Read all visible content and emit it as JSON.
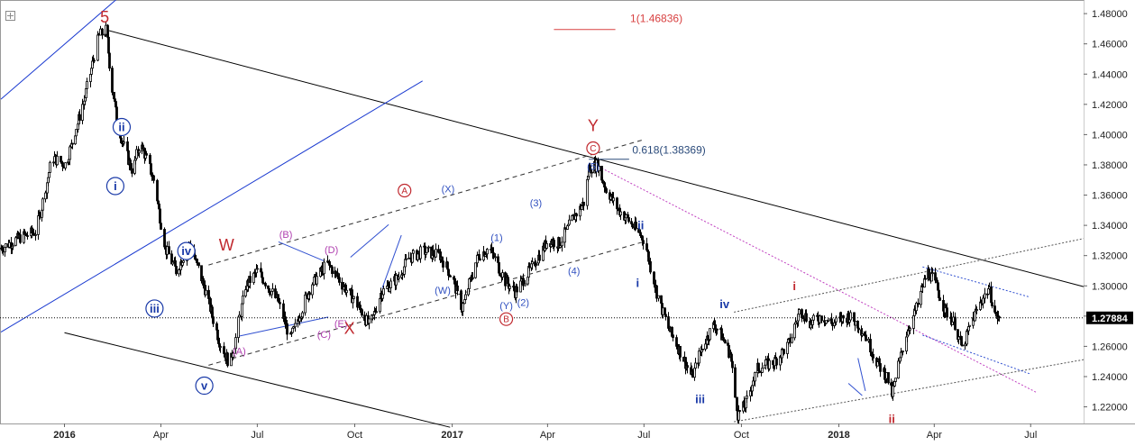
{
  "chart_data": {
    "type": "candlestick",
    "instrument_note": "",
    "y_axis": {
      "ticks": [
        "1.48000",
        "1.46000",
        "1.44000",
        "1.42000",
        "1.40000",
        "1.38000",
        "1.36000",
        "1.34000",
        "1.32000",
        "1.30000",
        "1.28000",
        "1.26000",
        "1.24000",
        "1.22000"
      ],
      "ylim": [
        1.209,
        1.489
      ],
      "side": "right"
    },
    "x_axis": {
      "ticks": [
        {
          "label": "2016",
          "bold": true,
          "date": "2016-01-01"
        },
        {
          "label": "Apr",
          "bold": false,
          "date": "2016-04-01"
        },
        {
          "label": "Jul",
          "bold": false,
          "date": "2016-07-01"
        },
        {
          "label": "Oct",
          "bold": false,
          "date": "2016-10-01"
        },
        {
          "label": "2017",
          "bold": true,
          "date": "2017-01-01"
        },
        {
          "label": "Apr",
          "bold": false,
          "date": "2017-04-01"
        },
        {
          "label": "Jul",
          "bold": false,
          "date": "2017-07-01"
        },
        {
          "label": "Oct",
          "bold": false,
          "date": "2017-10-01"
        },
        {
          "label": "2018",
          "bold": true,
          "date": "2018-01-01"
        },
        {
          "label": "Apr",
          "bold": false,
          "date": "2018-04-01"
        },
        {
          "label": "Jul",
          "bold": false,
          "date": "2018-07-01"
        }
      ],
      "xlim": [
        "2015-11-02",
        "2018-08-20"
      ]
    },
    "last_price": {
      "label": "1.27884",
      "value": 1.27884
    },
    "price_path": [
      [
        "2015-11-02",
        1.325
      ],
      [
        "2015-11-20",
        1.332
      ],
      [
        "2015-12-05",
        1.336
      ],
      [
        "2015-12-20",
        1.385
      ],
      [
        "2016-01-02",
        1.38
      ],
      [
        "2016-01-20",
        1.425
      ],
      [
        "2016-02-02",
        1.465
      ],
      [
        "2016-02-09",
        1.469
      ],
      [
        "2016-02-13",
        1.44
      ],
      [
        "2016-02-20",
        1.405
      ],
      [
        "2016-03-05",
        1.375
      ],
      [
        "2016-03-12",
        1.395
      ],
      [
        "2016-03-25",
        1.37
      ],
      [
        "2016-04-05",
        1.325
      ],
      [
        "2016-04-15",
        1.31
      ],
      [
        "2016-04-28",
        1.328
      ],
      [
        "2016-05-10",
        1.303
      ],
      [
        "2016-05-25",
        1.265
      ],
      [
        "2016-06-05",
        1.248
      ],
      [
        "2016-06-20",
        1.3
      ],
      [
        "2016-07-01",
        1.31
      ],
      [
        "2016-07-20",
        1.29
      ],
      [
        "2016-08-01",
        1.265
      ],
      [
        "2016-08-20",
        1.3
      ],
      [
        "2016-09-05",
        1.315
      ],
      [
        "2016-09-20",
        1.3
      ],
      [
        "2016-10-01",
        1.29
      ],
      [
        "2016-10-15",
        1.273
      ],
      [
        "2016-10-25",
        1.295
      ],
      [
        "2016-11-10",
        1.305
      ],
      [
        "2016-11-20",
        1.318
      ],
      [
        "2016-12-05",
        1.323
      ],
      [
        "2016-12-20",
        1.32
      ],
      [
        "2017-01-01",
        1.305
      ],
      [
        "2017-01-10",
        1.285
      ],
      [
        "2017-01-25",
        1.32
      ],
      [
        "2017-02-05",
        1.325
      ],
      [
        "2017-02-20",
        1.303
      ],
      [
        "2017-03-01",
        1.296
      ],
      [
        "2017-03-15",
        1.31
      ],
      [
        "2017-04-01",
        1.33
      ],
      [
        "2017-04-12",
        1.328
      ],
      [
        "2017-04-25",
        1.345
      ],
      [
        "2017-05-05",
        1.355
      ],
      [
        "2017-05-10",
        1.378
      ],
      [
        "2017-05-18",
        1.38
      ],
      [
        "2017-05-25",
        1.365
      ],
      [
        "2017-06-05",
        1.352
      ],
      [
        "2017-06-20",
        1.34
      ],
      [
        "2017-07-01",
        1.33
      ],
      [
        "2017-07-05",
        1.318
      ],
      [
        "2017-07-15",
        1.29
      ],
      [
        "2017-07-25",
        1.27
      ],
      [
        "2017-08-05",
        1.255
      ],
      [
        "2017-08-15",
        1.24
      ],
      [
        "2017-08-25",
        1.26
      ],
      [
        "2017-09-05",
        1.275
      ],
      [
        "2017-09-12",
        1.267
      ],
      [
        "2017-09-20",
        1.255
      ],
      [
        "2017-09-27",
        1.215
      ],
      [
        "2017-10-05",
        1.222
      ],
      [
        "2017-10-15",
        1.245
      ],
      [
        "2017-11-01",
        1.25
      ],
      [
        "2017-11-15",
        1.262
      ],
      [
        "2017-11-25",
        1.285
      ],
      [
        "2017-12-05",
        1.275
      ],
      [
        "2017-12-15",
        1.28
      ],
      [
        "2017-12-25",
        1.275
      ],
      [
        "2018-01-10",
        1.28
      ],
      [
        "2018-01-18",
        1.275
      ],
      [
        "2018-01-25",
        1.268
      ],
      [
        "2018-02-05",
        1.25
      ],
      [
        "2018-02-15",
        1.24
      ],
      [
        "2018-02-20",
        1.228
      ],
      [
        "2018-02-25",
        1.245
      ],
      [
        "2018-03-05",
        1.268
      ],
      [
        "2018-03-15",
        1.285
      ],
      [
        "2018-03-25",
        1.31
      ],
      [
        "2018-04-01",
        1.303
      ],
      [
        "2018-04-10",
        1.285
      ],
      [
        "2018-04-20",
        1.275
      ],
      [
        "2018-04-27",
        1.258
      ],
      [
        "2018-05-05",
        1.275
      ],
      [
        "2018-05-15",
        1.29
      ],
      [
        "2018-05-22",
        1.298
      ],
      [
        "2018-05-29",
        1.28
      ],
      [
        "2018-06-01",
        1.279
      ]
    ],
    "annotations": [
      {
        "text": "5",
        "color": "#c0282e",
        "date": "2016-02-08",
        "price": 1.478,
        "size": 18,
        "style": "plain"
      },
      {
        "text": "ii",
        "color": "#1a3aa8",
        "date": "2016-02-24",
        "price": 1.405,
        "size": 13,
        "style": "circle"
      },
      {
        "text": "i",
        "color": "#1a3aa8",
        "date": "2016-02-18",
        "price": 1.366,
        "size": 13,
        "style": "circle"
      },
      {
        "text": "iv",
        "color": "#1a3aa8",
        "date": "2016-04-25",
        "price": 1.323,
        "size": 13,
        "style": "circle"
      },
      {
        "text": "iii",
        "color": "#1a3aa8",
        "date": "2016-03-26",
        "price": 1.285,
        "size": 13,
        "style": "circle"
      },
      {
        "text": "v",
        "color": "#1a3aa8",
        "date": "2016-05-12",
        "price": 1.234,
        "size": 13,
        "style": "circle"
      },
      {
        "text": "W",
        "color": "#c0282e",
        "date": "2016-06-02",
        "price": 1.327,
        "size": 18,
        "style": "plain"
      },
      {
        "text": "(A)",
        "color": "#b040b0",
        "date": "2016-06-14",
        "price": 1.257,
        "size": 11,
        "style": "plain"
      },
      {
        "text": "(B)",
        "color": "#b040b0",
        "date": "2016-07-28",
        "price": 1.334,
        "size": 11,
        "style": "plain"
      },
      {
        "text": "(C)",
        "color": "#b040b0",
        "date": "2016-09-02",
        "price": 1.268,
        "size": 11,
        "style": "plain"
      },
      {
        "text": "(D)",
        "color": "#b040b0",
        "date": "2016-09-09",
        "price": 1.324,
        "size": 11,
        "style": "plain"
      },
      {
        "text": "(E)",
        "color": "#b040b0",
        "date": "2016-09-18",
        "price": 1.275,
        "size": 11,
        "style": "plain"
      },
      {
        "text": "X",
        "color": "#c0282e",
        "date": "2016-09-26",
        "price": 1.272,
        "size": 18,
        "style": "plain"
      },
      {
        "text": "A",
        "color": "#c0282e",
        "date": "2016-11-17",
        "price": 1.363,
        "size": 11,
        "style": "circle"
      },
      {
        "text": "(X)",
        "color": "#3050c0",
        "date": "2016-12-28",
        "price": 1.364,
        "size": 11,
        "style": "plain"
      },
      {
        "text": "(W)",
        "color": "#3050c0",
        "date": "2016-12-23",
        "price": 1.297,
        "size": 11,
        "style": "plain"
      },
      {
        "text": "(1)",
        "color": "#3050c0",
        "date": "2017-02-12",
        "price": 1.332,
        "size": 11,
        "style": "plain"
      },
      {
        "text": "(3)",
        "color": "#3050c0",
        "date": "2017-03-21",
        "price": 1.355,
        "size": 11,
        "style": "plain"
      },
      {
        "text": "(Y)",
        "color": "#3050c0",
        "date": "2017-02-21",
        "price": 1.287,
        "size": 11,
        "style": "plain"
      },
      {
        "text": "B",
        "color": "#c0282e",
        "date": "2017-02-21",
        "price": 1.278,
        "size": 11,
        "style": "circle"
      },
      {
        "text": "(2)",
        "color": "#3050c0",
        "date": "2017-03-09",
        "price": 1.289,
        "size": 11,
        "style": "plain"
      },
      {
        "text": "(4)",
        "color": "#3050c0",
        "date": "2017-04-26",
        "price": 1.31,
        "size": 11,
        "style": "plain"
      },
      {
        "text": "Y",
        "color": "#c0282e",
        "date": "2017-05-14",
        "price": 1.406,
        "size": 18,
        "style": "plain"
      },
      {
        "text": "C",
        "color": "#c0282e",
        "date": "2017-05-14",
        "price": 1.391,
        "size": 11,
        "style": "circle"
      },
      {
        "text": "(5)",
        "color": "#3050c0",
        "date": "2017-05-14",
        "price": 1.379,
        "size": 11,
        "style": "plain"
      },
      {
        "text": "ii",
        "color": "#1a3aa8",
        "date": "2017-06-28",
        "price": 1.34,
        "size": 13,
        "style": "bold"
      },
      {
        "text": "i",
        "color": "#1a3aa8",
        "date": "2017-06-25",
        "price": 1.302,
        "size": 13,
        "style": "bold"
      },
      {
        "text": "iii",
        "color": "#1a3aa8",
        "date": "2017-08-23",
        "price": 1.225,
        "size": 13,
        "style": "bold"
      },
      {
        "text": "iv",
        "color": "#1a3aa8",
        "date": "2017-09-15",
        "price": 1.288,
        "size": 13,
        "style": "bold"
      },
      {
        "text": "i",
        "color": "#c0282e",
        "date": "2017-11-20",
        "price": 1.3,
        "size": 13,
        "style": "bold"
      },
      {
        "text": "ii",
        "color": "#c0282e",
        "date": "2018-02-20",
        "price": 1.212,
        "size": 13,
        "style": "bold"
      }
    ],
    "fib_labels": [
      {
        "text": "1(1.46836)",
        "color": "#d84040",
        "date": "2017-06-18",
        "price": 1.4745
      },
      {
        "text": "0.618(1.38369)",
        "color": "#2a4a7a",
        "date": "2017-06-20",
        "price": 1.3873
      }
    ],
    "fib_lines": [
      {
        "color": "#d84040",
        "d1": "2017-04-07",
        "d2": "2017-06-04",
        "price": 1.4695
      },
      {
        "color": "#2a4a7a",
        "d1": "2017-05-10",
        "d2": "2017-06-17",
        "price": 1.3837
      }
    ],
    "lines": [
      {
        "color": "#000000",
        "dash": "",
        "d1": "2016-02-08",
        "p1": 1.4695,
        "d2": "2018-08-20",
        "p2": 1.2995
      },
      {
        "color": "#000000",
        "dash": "",
        "d1": "2016-01-01",
        "p1": 1.269,
        "d2": "2016-12-30",
        "p2": 1.2065
      },
      {
        "color": "#1a3ad0",
        "dash": "",
        "d1": "2015-11-02",
        "p1": 1.4234,
        "d2": "2016-03-10",
        "p2": 1.5015
      },
      {
        "color": "#1a3ad0",
        "dash": "",
        "d1": "2015-11-02",
        "p1": 1.2694,
        "d2": "2016-12-04",
        "p2": 1.4355
      },
      {
        "color": "#333333",
        "dash": "5,4",
        "d1": "2016-05-16",
        "p1": 1.3138,
        "d2": "2017-06-30",
        "p2": 1.3965
      },
      {
        "color": "#333333",
        "dash": "5,4",
        "d1": "2016-05-16",
        "p1": 1.2475,
        "d2": "2017-07-01",
        "p2": 1.3292
      },
      {
        "color": "#c040c0",
        "dash": "2,2",
        "d1": "2017-05-16",
        "p1": 1.38,
        "d2": "2018-07-06",
        "p2": 1.2297
      },
      {
        "color": "#555555",
        "dash": "2,2",
        "d1": "2017-09-24",
        "p1": 1.2826,
        "d2": "2018-08-20",
        "p2": 1.3313
      },
      {
        "color": "#555555",
        "dash": "2,2",
        "d1": "2017-09-24",
        "p1": 1.2101,
        "d2": "2018-08-20",
        "p2": 1.2512
      },
      {
        "color": "#3050d0",
        "dash": "2,2",
        "d1": "2018-03-21",
        "p1": 1.3125,
        "d2": "2018-06-30",
        "p2": 1.2926
      },
      {
        "color": "#3050d0",
        "dash": "2,2",
        "d1": "2018-03-21",
        "p1": 1.2674,
        "d2": "2018-06-30",
        "p2": 1.2419
      },
      {
        "color": "#3050d0",
        "dash": "",
        "d1": "2016-06-14",
        "p1": 1.2668,
        "d2": "2016-09-06",
        "p2": 1.2794
      },
      {
        "color": "#3050d0",
        "dash": "",
        "d1": "2016-07-21",
        "p1": 1.3291,
        "d2": "2016-09-02",
        "p2": 1.3165
      },
      {
        "color": "#3050d0",
        "dash": "",
        "d1": "2016-09-27",
        "p1": 1.3189,
        "d2": "2016-11-02",
        "p2": 1.3405
      },
      {
        "color": "#3050d0",
        "dash": "",
        "d1": "2016-10-27",
        "p1": 1.2986,
        "d2": "2016-11-14",
        "p2": 1.3335
      },
      {
        "color": "#3050d0",
        "dash": "",
        "d1": "2018-01-10",
        "p1": 1.2355,
        "d2": "2018-01-23",
        "p2": 1.2275
      },
      {
        "color": "#3050d0",
        "dash": "",
        "d1": "2018-01-19",
        "p1": 1.2522,
        "d2": "2018-01-26",
        "p2": 1.2305
      }
    ]
  }
}
